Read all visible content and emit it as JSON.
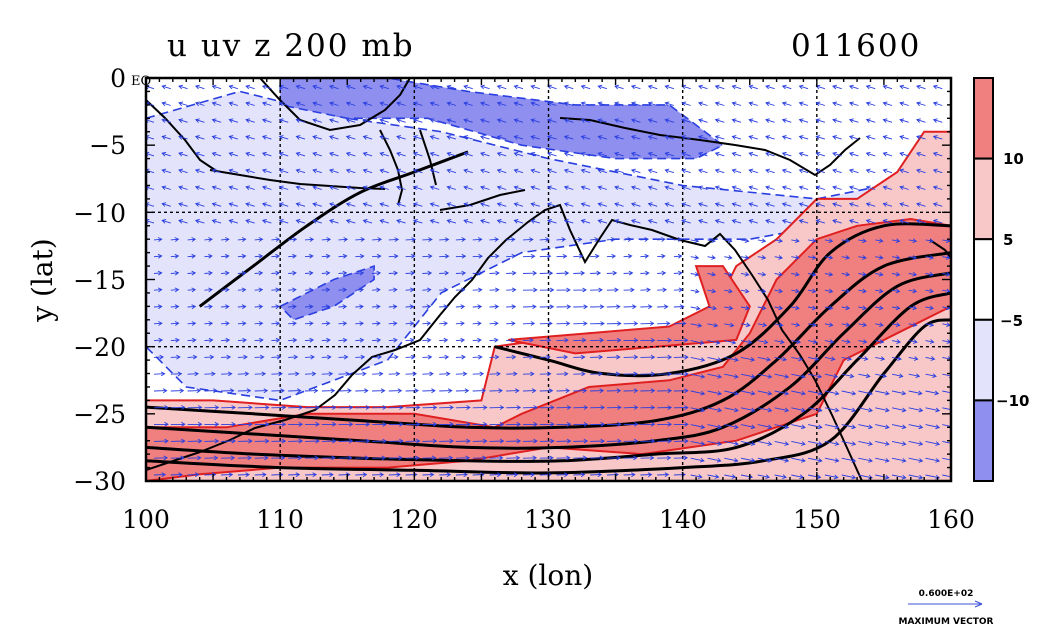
{
  "chart_data": {
    "type": "heatmap",
    "title_left": "u uv z 200 mb",
    "title_right": "011600",
    "xlabel": "x (lon)",
    "ylabel": "y (lat)",
    "xlim": [
      100,
      160
    ],
    "ylim": [
      -30,
      0
    ],
    "x_ticks": [
      "100",
      "110",
      "120",
      "130",
      "140",
      "150",
      "160"
    ],
    "y_ticks": [
      "0",
      "−5",
      "−10",
      "−15",
      "−20",
      "−25",
      "−30"
    ],
    "eq_label": "EQ",
    "grid": true,
    "colorbar": {
      "levels": [
        {
          "label": "",
          "range": [
            10,
            15
          ],
          "color": "#f08080"
        },
        {
          "label": "10",
          "range": [
            5,
            10
          ],
          "color": "#f8c8c8"
        },
        {
          "label": "5",
          "range": [
            -5,
            5
          ],
          "color": "#ffffff"
        },
        {
          "label": "−5",
          "range": [
            -10,
            -5
          ],
          "color": "#e3e3fb"
        },
        {
          "label": "−10",
          "range": [
            -15,
            -10
          ],
          "color": "#8f8ff0"
        }
      ]
    },
    "u_regions": [
      {
        "level": "neg_weak",
        "poly": [
          [
            100,
            -3
          ],
          [
            107,
            -1
          ],
          [
            115,
            -3
          ],
          [
            122,
            -4
          ],
          [
            130,
            -6
          ],
          [
            140,
            -8
          ],
          [
            150,
            -9
          ],
          [
            155,
            -8
          ],
          [
            156,
            -10
          ],
          [
            145,
            -12
          ],
          [
            135,
            -12
          ],
          [
            128,
            -13
          ],
          [
            122,
            -16
          ],
          [
            118,
            -21
          ],
          [
            110,
            -24
          ],
          [
            103,
            -23
          ],
          [
            100,
            -20
          ]
        ]
      },
      {
        "level": "neg_strong",
        "poly": [
          [
            110,
            0
          ],
          [
            118,
            0
          ],
          [
            124,
            -1
          ],
          [
            132,
            -2
          ],
          [
            139,
            -2
          ],
          [
            143,
            -5
          ],
          [
            141,
            -6
          ],
          [
            135,
            -6
          ],
          [
            128,
            -5
          ],
          [
            121,
            -3
          ],
          [
            115,
            -3
          ],
          [
            110,
            -2
          ]
        ]
      },
      {
        "level": "neg_strong",
        "poly": [
          [
            110,
            -17
          ],
          [
            114,
            -15
          ],
          [
            117,
            -14
          ],
          [
            117,
            -15
          ],
          [
            114,
            -17
          ],
          [
            111,
            -18
          ]
        ]
      },
      {
        "level": "pos_weak",
        "poly": [
          [
            100,
            -30
          ],
          [
            100,
            -24
          ],
          [
            105,
            -24
          ],
          [
            112,
            -24.5
          ],
          [
            118,
            -24.5
          ],
          [
            125,
            -24
          ],
          [
            126,
            -20
          ],
          [
            133,
            -19
          ],
          [
            138,
            -19
          ],
          [
            142,
            -18
          ],
          [
            144,
            -14
          ],
          [
            147,
            -12
          ],
          [
            150,
            -9
          ],
          [
            153,
            -9
          ],
          [
            156,
            -7
          ],
          [
            158,
            -4
          ],
          [
            160,
            -4
          ],
          [
            160,
            -30
          ]
        ]
      },
      {
        "level": "pos_strong",
        "poly": [
          [
            100,
            -30
          ],
          [
            100,
            -26
          ],
          [
            106,
            -26
          ],
          [
            112,
            -25
          ],
          [
            120,
            -25
          ],
          [
            126,
            -26
          ],
          [
            128,
            -25
          ],
          [
            133,
            -23
          ],
          [
            139,
            -22.5
          ],
          [
            143,
            -21.5
          ],
          [
            145,
            -19
          ],
          [
            147,
            -15
          ],
          [
            150,
            -12
          ],
          [
            153,
            -11
          ],
          [
            157,
            -10.5
          ],
          [
            160,
            -11
          ],
          [
            160,
            -17
          ],
          [
            156,
            -19
          ],
          [
            152,
            -21
          ],
          [
            150,
            -25
          ],
          [
            144,
            -27
          ],
          [
            137,
            -28
          ],
          [
            130,
            -27.5
          ],
          [
            124,
            -28.5
          ],
          [
            118,
            -29
          ],
          [
            110,
            -29
          ],
          [
            104,
            -29.5
          ]
        ]
      },
      {
        "level": "pos_strong",
        "poly": [
          [
            127,
            -19.5
          ],
          [
            133,
            -19
          ],
          [
            139,
            -18.5
          ],
          [
            142,
            -17
          ],
          [
            141,
            -14
          ],
          [
            143,
            -14
          ],
          [
            145,
            -17
          ],
          [
            144,
            -19.5
          ],
          [
            138,
            -20
          ],
          [
            132,
            -20.5
          ]
        ]
      }
    ],
    "z_contours": [
      [
        [
          100,
          -24.5
        ],
        [
          108,
          -25
        ],
        [
          116,
          -25.5
        ],
        [
          124,
          -26
        ],
        [
          131,
          -26
        ],
        [
          138,
          -25.5
        ],
        [
          143,
          -24
        ],
        [
          147,
          -21
        ],
        [
          151,
          -17
        ],
        [
          155,
          -14
        ],
        [
          160,
          -13
        ]
      ],
      [
        [
          100,
          -26
        ],
        [
          108,
          -26.5
        ],
        [
          116,
          -27
        ],
        [
          124,
          -27.5
        ],
        [
          131,
          -27.5
        ],
        [
          138,
          -27
        ],
        [
          143,
          -26
        ],
        [
          148,
          -23
        ],
        [
          152,
          -19
        ],
        [
          156,
          -15.5
        ],
        [
          160,
          -14.5
        ]
      ],
      [
        [
          100,
          -27.5
        ],
        [
          108,
          -28
        ],
        [
          116,
          -28.3
        ],
        [
          124,
          -28.5
        ],
        [
          131,
          -28.5
        ],
        [
          138,
          -28
        ],
        [
          144,
          -27.5
        ],
        [
          149,
          -25
        ],
        [
          153,
          -21
        ],
        [
          157,
          -17
        ],
        [
          160,
          -16
        ]
      ],
      [
        [
          100,
          -28.5
        ],
        [
          110,
          -29
        ],
        [
          120,
          -29.2
        ],
        [
          130,
          -29.4
        ],
        [
          140,
          -29
        ],
        [
          146,
          -28.5
        ],
        [
          151,
          -27
        ],
        [
          155,
          -22
        ],
        [
          158,
          -18.5
        ],
        [
          160,
          -18
        ]
      ],
      [
        [
          126,
          -20
        ],
        [
          130,
          -21
        ],
        [
          134,
          -22
        ],
        [
          139,
          -22
        ],
        [
          144,
          -20.5
        ],
        [
          148,
          -17
        ],
        [
          151,
          -13
        ],
        [
          155,
          -11
        ],
        [
          160,
          -11
        ]
      ],
      [
        [
          104,
          -17
        ],
        [
          108,
          -14
        ],
        [
          112,
          -11
        ],
        [
          116,
          -8.5
        ],
        [
          120,
          -7
        ],
        [
          124,
          -5.5
        ]
      ]
    ],
    "vector_ref": {
      "value": "0.600E+02",
      "label": "MAXIMUM VECTOR"
    }
  }
}
